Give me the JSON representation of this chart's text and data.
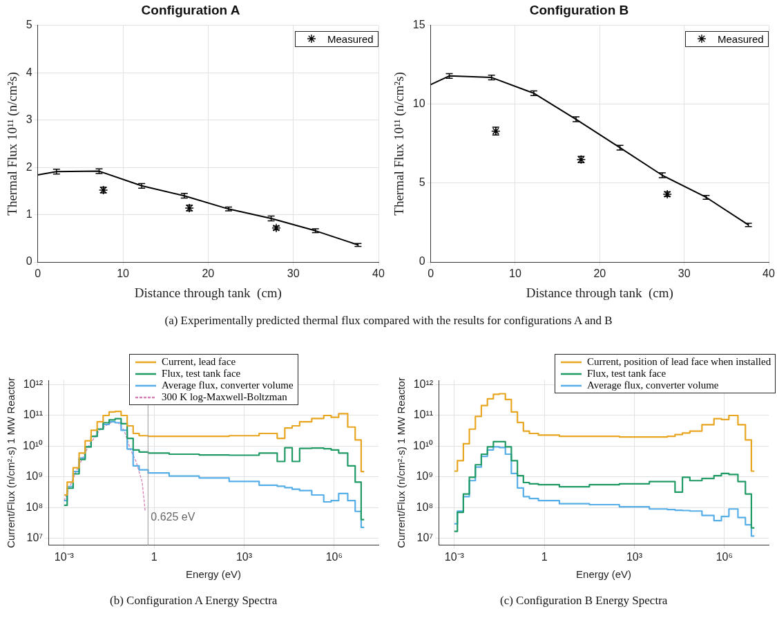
{
  "chart_data": [
    {
      "type": "line",
      "title": "Configuration A",
      "xlabel": "Distance through tank  (cm)",
      "ylabel": "Thermal Flux 10¹¹ (n/cm²s)",
      "xlim": [
        0,
        40
      ],
      "xticks": [
        0,
        10,
        20,
        30,
        40
      ],
      "ylim": [
        0,
        5
      ],
      "yticks": [
        0,
        1,
        2,
        3,
        4,
        5
      ],
      "grid": true,
      "legend": "top right",
      "annotations": [
        "(a) Experimentally predicted thermal flux compared with the results for configurations A and B"
      ],
      "series": [
        {
          "color": "#000000",
          "x": [
            0,
            2.2,
            7.2,
            12.2,
            17.2,
            22.4,
            27.4,
            32.6,
            37.6
          ],
          "values": [
            1.84,
            1.91,
            1.92,
            1.61,
            1.4,
            1.12,
            0.92,
            0.66,
            0.36
          ],
          "errors": [
            null,
            0.05,
            0.05,
            0.05,
            0.05,
            0.04,
            0.05,
            0.04,
            0.03
          ]
        },
        {
          "type": "scatter",
          "name": "Measured",
          "color": "#000000",
          "marker": "cross",
          "x": [
            7.7,
            17.8,
            28
          ],
          "values": [
            1.52,
            1.14,
            0.72
          ],
          "errors": [
            0.06,
            0.06,
            0.04
          ]
        }
      ]
    },
    {
      "type": "line",
      "title": "Configuration B",
      "xlabel": "Distance through tank  (cm)",
      "ylabel": "Thermal Flux 10¹¹ (n/cm²s)",
      "xlim": [
        0,
        40
      ],
      "xticks": [
        0,
        10,
        20,
        30,
        40
      ],
      "ylim": [
        0,
        15
      ],
      "yticks": [
        0,
        5,
        10,
        15
      ],
      "grid": true,
      "legend": "top right",
      "series": [
        {
          "color": "#000000",
          "x": [
            0,
            2.2,
            7.2,
            12.2,
            17.2,
            22.4,
            27.4,
            32.6,
            37.6
          ],
          "values": [
            11.25,
            11.8,
            11.7,
            10.7,
            9.05,
            7.25,
            5.5,
            4.1,
            2.35
          ],
          "errors": [
            null,
            0.15,
            0.15,
            0.15,
            0.15,
            0.15,
            0.15,
            0.12,
            0.1
          ]
        },
        {
          "type": "scatter",
          "name": "Measured",
          "color": "#000000",
          "marker": "cross",
          "x": [
            7.7,
            17.8,
            28
          ],
          "values": [
            8.3,
            6.5,
            4.3
          ],
          "errors": [
            0.25,
            0.2,
            0.15
          ]
        }
      ]
    },
    {
      "type": "step",
      "xlabel": "Energy (eV)",
      "ylabel": "Current/Flux (n/cm²·s) 1 MW Reactor",
      "log": "xy",
      "xlim": [
        0.0003,
        30000000
      ],
      "ylim": [
        6000000,
        1400000000000
      ],
      "xticks": [
        {
          "value": 0.001,
          "label": "10⁻³"
        },
        {
          "value": 1,
          "label": "1"
        },
        {
          "value": 1000,
          "label": "10³"
        },
        {
          "value": 1000000,
          "label": "10⁶"
        }
      ],
      "yticks": [
        {
          "value": 10000000,
          "label": "10⁷"
        },
        {
          "value": 100000000,
          "label": "10⁸"
        },
        {
          "value": 1000000000,
          "label": "10⁹"
        },
        {
          "value": 10000000000,
          "label": "10¹⁰"
        },
        {
          "value": 100000000000,
          "label": "10¹¹"
        },
        {
          "value": 1000000000000,
          "label": "10¹²"
        }
      ],
      "grid": true,
      "legend": "top",
      "annotations": [
        "(b) Configuration A Energy Spectra"
      ],
      "ref_lines": [
        {
          "axis": "x",
          "value": 0.625,
          "label": "0.625 eV",
          "color": "#999999"
        }
      ],
      "x": [
        0.001,
        0.0016,
        0.0025,
        0.004,
        0.0063,
        0.01,
        0.016,
        0.025,
        0.04,
        0.063,
        0.1,
        0.16,
        0.25,
        0.4,
        1,
        10,
        100,
        1000,
        10000,
        16000,
        32000,
        50000,
        100000,
        320000,
        630000,
        1000000,
        2000000,
        4000000,
        6300000,
        10000000
      ],
      "series": [
        {
          "name": "Current, lead face",
          "color": "#e8a620",
          "values": [
            260000000.0,
            680000000.0,
            2000000000.0,
            6000000000.0,
            15000000000.0,
            33000000000.0,
            62000000000.0,
            100000000000.0,
            130000000000.0,
            135000000000.0,
            100000000000.0,
            46000000000.0,
            26000000000.0,
            22000000000.0,
            21000000000.0,
            21000000000.0,
            21000000000.0,
            22000000000.0,
            26000000000.0,
            18000000000.0,
            39000000000.0,
            46000000000.0,
            62000000000.0,
            80000000000.0,
            100000000000.0,
            87000000000.0,
            115000000000.0,
            42000000000.0,
            16000000000.0,
            1500000000.0
          ]
        },
        {
          "name": "Flux, test tank face",
          "color": "#1f9a64",
          "values": [
            120000000.0,
            430000000.0,
            1260000000.0,
            3700000000.0,
            9500000000.0,
            21000000000.0,
            36000000000.0,
            58000000000.0,
            72000000000.0,
            79000000000.0,
            54000000000.0,
            18000000000.0,
            7600000000.0,
            6500000000.0,
            6000000000.0,
            5500000000.0,
            5200000000.0,
            5100000000.0,
            6000000000.0,
            3200000000.0,
            8900000000.0,
            3200000000.0,
            8500000000.0,
            8700000000.0,
            8300000000.0,
            7600000000.0,
            6000000000.0,
            2300000000.0,
            680000000.0,
            41000000.0
          ]
        },
        {
          "name": "Average flux, converter volume",
          "color": "#55aee8",
          "values": [
            170000000.0,
            490000000.0,
            1500000000.0,
            4100000000.0,
            9500000000.0,
            21000000000.0,
            36000000000.0,
            51000000000.0,
            62000000000.0,
            58000000000.0,
            33000000000.0,
            8100000000.0,
            2300000000.0,
            1700000000.0,
            1350000000.0,
            1070000000.0,
            930000000.0,
            720000000.0,
            540000000.0,
            500000000.0,
            450000000.0,
            400000000.0,
            360000000.0,
            260000000.0,
            155000000.0,
            170000000.0,
            290000000.0,
            170000000.0,
            76000000.0,
            23000000.0
          ]
        },
        {
          "name": "300 K log-Maxwell-Boltzman",
          "type": "line",
          "line_style": "dashed",
          "color": "#d47fb4",
          "x": [
            0.001,
            0.0025,
            0.0063,
            0.016,
            0.04,
            0.063,
            0.1,
            0.16,
            0.25,
            0.4,
            0.5
          ],
          "values": [
            170000000.0,
            1500000000.0,
            9500000000.0,
            36000000000.0,
            62000000000.0,
            58000000000.0,
            33000000000.0,
            8100000000.0,
            3200000000.0,
            680000000.0,
            81000000.0
          ]
        }
      ]
    },
    {
      "type": "step",
      "xlabel": "Energy (eV)",
      "ylabel": "Current/Flux (n/cm²·s) 1 MW Reactor",
      "log": "xy",
      "xlim": [
        0.0003,
        30000000
      ],
      "ylim": [
        6000000,
        1400000000000
      ],
      "xticks": [
        {
          "value": 0.001,
          "label": "10⁻³"
        },
        {
          "value": 1,
          "label": "1"
        },
        {
          "value": 1000,
          "label": "10³"
        },
        {
          "value": 1000000,
          "label": "10⁶"
        }
      ],
      "yticks": [
        {
          "value": 10000000,
          "label": "10⁷"
        },
        {
          "value": 100000000,
          "label": "10⁸"
        },
        {
          "value": 1000000000,
          "label": "10⁹"
        },
        {
          "value": 10000000000,
          "label": "10¹⁰"
        },
        {
          "value": 100000000000,
          "label": "10¹¹"
        },
        {
          "value": 1000000000000,
          "label": "10¹²"
        }
      ],
      "grid": true,
      "legend": "top right",
      "annotations": [
        "(c) Configuration B Energy Spectra"
      ],
      "x": [
        0.001,
        0.0016,
        0.0025,
        0.004,
        0.0063,
        0.01,
        0.016,
        0.025,
        0.04,
        0.063,
        0.1,
        0.16,
        0.25,
        0.4,
        1,
        10,
        100,
        1000,
        10000,
        16000,
        32000,
        50000,
        100000,
        320000,
        630000,
        1000000,
        2000000,
        4000000,
        6300000,
        10000000
      ],
      "series": [
        {
          "name": "Current, position of lead face when installed",
          "color": "#e8a620",
          "values": [
            1550000000.0,
            3400000000.0,
            12000000000.0,
            36000000000.0,
            93000000000.0,
            210000000000.0,
            350000000000.0,
            490000000000.0,
            510000000000.0,
            330000000000.0,
            130000000000.0,
            59000000000.0,
            31000000000.0,
            26000000000.0,
            23000000000.0,
            21000000000.0,
            21000000000.0,
            20000000000.0,
            20000000000.0,
            21000000000.0,
            24000000000.0,
            27000000000.0,
            31000000000.0,
            50000000000.0,
            79000000000.0,
            74000000000.0,
            100000000000.0,
            50000000000.0,
            16000000000.0,
            1550000000.0
          ]
        },
        {
          "name": "Flux, test tank face",
          "color": "#1f9a64",
          "values": [
            17000000.0,
            71000000.0,
            280000000.0,
            980000000.0,
            2500000000.0,
            5500000000.0,
            9500000000.0,
            14000000000.0,
            14000000000.0,
            9500000000.0,
            3400000000.0,
            1100000000.0,
            660000000.0,
            600000000.0,
            560000000.0,
            480000000.0,
            560000000.0,
            600000000.0,
            710000000.0,
            710000000.0,
            320000000.0,
            980000000.0,
            760000000.0,
            890000000.0,
            1100000000.0,
            1300000000.0,
            1200000000.0,
            710000000.0,
            280000000.0,
            22000000.0
          ]
        },
        {
          "name": "Average flux, converter volume",
          "color": "#55aee8",
          "values": [
            30000000.0,
            78000000.0,
            230000000.0,
            760000000.0,
            2100000000.0,
            4700000000.0,
            7600000000.0,
            9500000000.0,
            9100000000.0,
            5500000000.0,
            1300000000.0,
            440000000.0,
            230000000.0,
            200000000.0,
            170000000.0,
            135000000.0,
            126000000.0,
            107000000.0,
            91000000.0,
            87000000.0,
            83000000.0,
            81000000.0,
            78000000.0,
            56000000.0,
            38000000.0,
            52000000.0,
            91000000.0,
            48000000.0,
            28000000.0,
            12000000.0
          ]
        }
      ]
    }
  ]
}
